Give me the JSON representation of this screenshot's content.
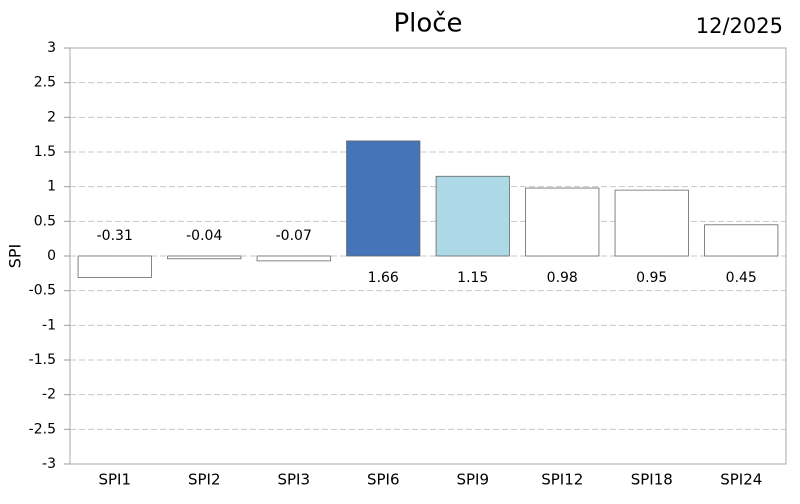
{
  "chart_data": {
    "type": "bar",
    "title": "Ploče",
    "date": "12/2025",
    "y_label": "SPI",
    "categories": [
      "SPI1",
      "SPI2",
      "SPI3",
      "SPI6",
      "SPI9",
      "SPI12",
      "SPI18",
      "SPI24"
    ],
    "values": [
      -0.31,
      -0.04,
      -0.07,
      1.66,
      1.15,
      0.98,
      0.95,
      0.45
    ],
    "colors": [
      "#ffffff",
      "#ffffff",
      "#ffffff",
      "#4674b9",
      "#add8e6",
      "#ffffff",
      "#ffffff",
      "#ffffff"
    ],
    "ylim": [
      -3,
      3
    ],
    "yticks": [
      -3,
      -2.5,
      -2,
      -1.5,
      -1,
      -0.5,
      0,
      0.5,
      1,
      1.5,
      2,
      2.5,
      3
    ],
    "grid": true
  }
}
